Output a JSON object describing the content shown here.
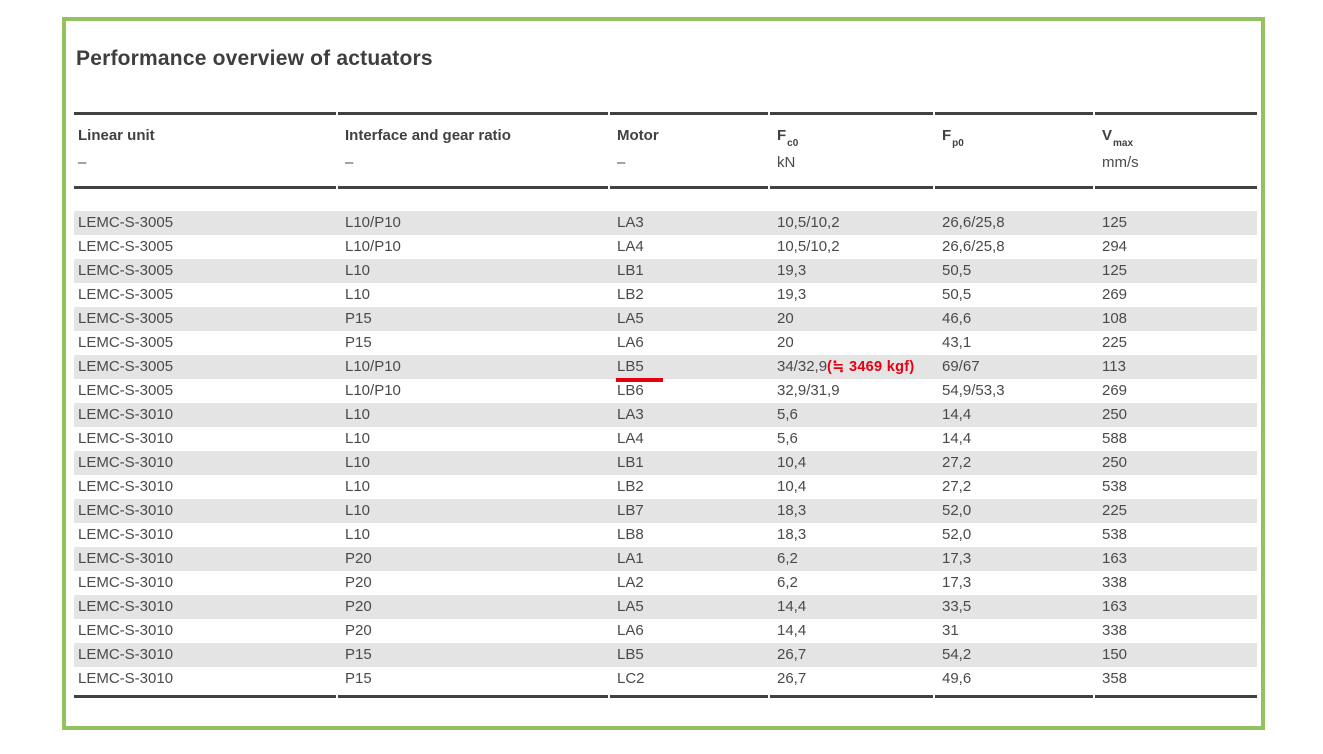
{
  "panel": {
    "title": "Performance overview of actuators",
    "border_color": "#93c25e"
  },
  "table": {
    "columns": [
      {
        "label": "Linear unit",
        "sub": "",
        "unit": "–"
      },
      {
        "label": "Interface and gear ratio",
        "sub": "",
        "unit": "–"
      },
      {
        "label": "Motor",
        "sub": "",
        "unit": "–"
      },
      {
        "label": "F",
        "sub": "c0",
        "unit": "kN"
      },
      {
        "label": "F",
        "sub": "p0",
        "unit": ""
      },
      {
        "label": "V",
        "sub": "max",
        "unit": "mm/s"
      }
    ],
    "rows": [
      [
        "LEMC-S-3005",
        "L10/P10",
        "LA3",
        "10,5/10,2",
        "26,6/25,8",
        "125"
      ],
      [
        "LEMC-S-3005",
        "L10/P10",
        "LA4",
        "10,5/10,2",
        "26,6/25,8",
        "294"
      ],
      [
        "LEMC-S-3005",
        "L10",
        "LB1",
        "19,3",
        "50,5",
        "125"
      ],
      [
        "LEMC-S-3005",
        "L10",
        "LB2",
        "19,3",
        "50,5",
        "269"
      ],
      [
        "LEMC-S-3005",
        "P15",
        "LA5",
        "20",
        "46,6",
        "108"
      ],
      [
        "LEMC-S-3005",
        "P15",
        "LA6",
        "20",
        "43,1",
        "225"
      ],
      [
        "LEMC-S-3005",
        "L10/P10",
        "LB5",
        "34/32,9",
        "69/67",
        "113"
      ],
      [
        "LEMC-S-3005",
        "L10/P10",
        "LB6",
        "32,9/31,9",
        "54,9/53,3",
        "269"
      ],
      [
        "LEMC-S-3010",
        "L10",
        "LA3",
        "5,6",
        "14,4",
        "250"
      ],
      [
        "LEMC-S-3010",
        "L10",
        "LA4",
        "5,6",
        "14,4",
        "588"
      ],
      [
        "LEMC-S-3010",
        "L10",
        "LB1",
        "10,4",
        "27,2",
        "250"
      ],
      [
        "LEMC-S-3010",
        "L10",
        "LB2",
        "10,4",
        "27,2",
        "538"
      ],
      [
        "LEMC-S-3010",
        "L10",
        "LB7",
        "18,3",
        "52,0",
        "225"
      ],
      [
        "LEMC-S-3010",
        "L10",
        "LB8",
        "18,3",
        "52,0",
        "538"
      ],
      [
        "LEMC-S-3010",
        "P20",
        "LA1",
        "6,2",
        "17,3",
        "163"
      ],
      [
        "LEMC-S-3010",
        "P20",
        "LA2",
        "6,2",
        "17,3",
        "338"
      ],
      [
        "LEMC-S-3010",
        "P20",
        "LA5",
        "14,4",
        "33,5",
        "163"
      ],
      [
        "LEMC-S-3010",
        "P20",
        "LA6",
        "14,4",
        "31",
        "338"
      ],
      [
        "LEMC-S-3010",
        "P15",
        "LB5",
        "26,7",
        "54,2",
        "150"
      ],
      [
        "LEMC-S-3010",
        "P15",
        "LC2",
        "26,7",
        "49,6",
        "358"
      ]
    ]
  },
  "annotation": {
    "text": "(≒ 3469 kgf)",
    "color": "#e60012",
    "row_index": 6,
    "after_column_index": 3,
    "underline_column_index": 2
  },
  "colors": {
    "stripe": "#e4e4e4",
    "rule": "#414042",
    "text": "#4a4a4c"
  }
}
